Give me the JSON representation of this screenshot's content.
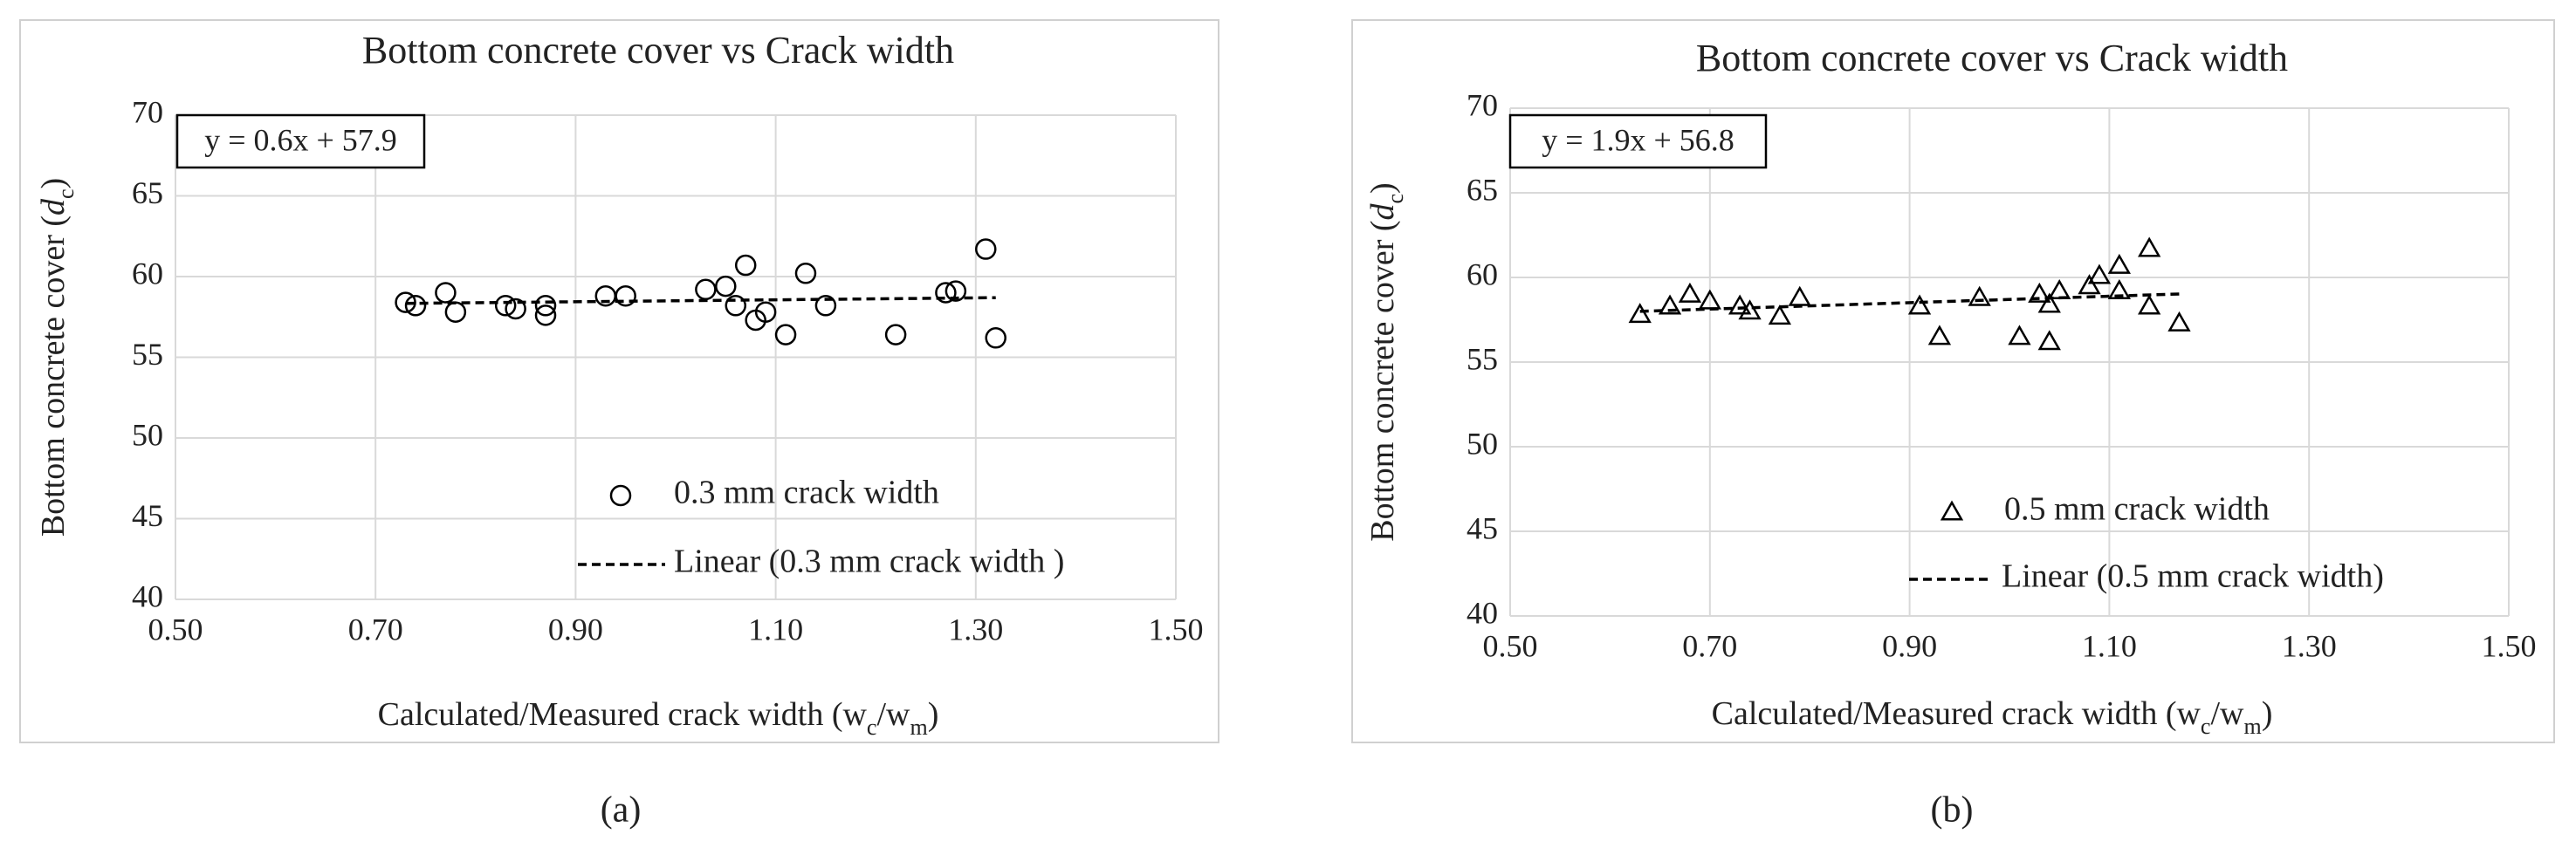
{
  "chart_data": [
    {
      "type": "scatter",
      "title": "Bottom concrete cover vs Crack width",
      "panel_label": "(a)",
      "xlabel": [
        "Calculated/Measured crack width (w",
        "c",
        "/w",
        "m",
        ")"
      ],
      "ylabel": [
        "Bottom concrete cover  (",
        "d",
        "c",
        ")"
      ],
      "xlim": [
        0.5,
        1.5
      ],
      "xticks": [
        {
          "value": 0.5,
          "label": "0.50"
        },
        {
          "value": 0.7,
          "label": "0.70"
        },
        {
          "value": 0.9,
          "label": "0.90"
        },
        {
          "value": 1.1,
          "label": "1.10"
        },
        {
          "value": 1.3,
          "label": "1.30"
        },
        {
          "value": 1.5,
          "label": "1.50"
        }
      ],
      "ylim": [
        40,
        70
      ],
      "yticks": [
        40,
        45,
        50,
        55,
        60,
        65,
        70
      ],
      "grid": true,
      "series": [
        {
          "name": "0.3 mm crack width",
          "color": "#000000",
          "marker": "circle",
          "x": [
            0.73,
            0.74,
            0.77,
            0.78,
            0.83,
            0.84,
            0.87,
            0.87,
            0.93,
            0.95,
            1.03,
            1.05,
            1.06,
            1.07,
            1.08,
            1.09,
            1.11,
            1.13,
            1.15,
            1.22,
            1.27,
            1.28,
            1.31,
            1.32
          ],
          "values": [
            58.4,
            58.2,
            59.0,
            57.8,
            58.2,
            58.0,
            57.6,
            58.2,
            58.8,
            58.8,
            59.2,
            59.4,
            58.2,
            60.7,
            57.3,
            57.8,
            56.4,
            60.2,
            58.2,
            56.4,
            59.0,
            59.1,
            61.7,
            56.2
          ]
        }
      ],
      "trendline": {
        "name": "Linear (0.3 mm crack width )",
        "equation": "y = 0.6x + 57.9",
        "slope": 0.6,
        "intercept": 57.9,
        "color": "#000000"
      }
    },
    {
      "type": "scatter",
      "title": "Bottom concrete cover vs Crack width",
      "panel_label": "(b)",
      "xlabel": [
        "Calculated/Measured crack width (w",
        "c",
        "/w",
        "m",
        ")"
      ],
      "ylabel": [
        "Bottom concrete cover  (",
        "d",
        "c",
        ")"
      ],
      "xlim": [
        0.5,
        1.5
      ],
      "xticks": [
        {
          "value": 0.5,
          "label": "0.50"
        },
        {
          "value": 0.7,
          "label": "0.70"
        },
        {
          "value": 0.9,
          "label": "0.90"
        },
        {
          "value": 1.1,
          "label": "1.10"
        },
        {
          "value": 1.3,
          "label": "1.30"
        },
        {
          "value": 1.5,
          "label": "1.50"
        }
      ],
      "ylim": [
        40,
        70
      ],
      "yticks": [
        40,
        45,
        50,
        55,
        60,
        65,
        70
      ],
      "grid": true,
      "series": [
        {
          "name": "0.5 mm crack width",
          "color": "#000000",
          "marker": "triangle",
          "x": [
            0.63,
            0.66,
            0.68,
            0.7,
            0.73,
            0.74,
            0.77,
            0.79,
            0.91,
            0.93,
            0.97,
            1.01,
            1.03,
            1.04,
            1.04,
            1.05,
            1.08,
            1.09,
            1.11,
            1.11,
            1.14,
            1.14,
            1.17
          ],
          "values": [
            57.8,
            58.3,
            59.0,
            58.6,
            58.3,
            58.0,
            57.7,
            58.8,
            58.3,
            56.5,
            58.8,
            56.5,
            59.0,
            58.4,
            56.2,
            59.2,
            59.5,
            60.1,
            60.7,
            59.2,
            61.7,
            58.3,
            57.3
          ]
        }
      ],
      "trendline": {
        "name": "Linear (0.5 mm crack width)",
        "equation": "y = 1.9x + 56.8",
        "slope": 1.9,
        "intercept": 56.8,
        "color": "#000000"
      }
    }
  ]
}
